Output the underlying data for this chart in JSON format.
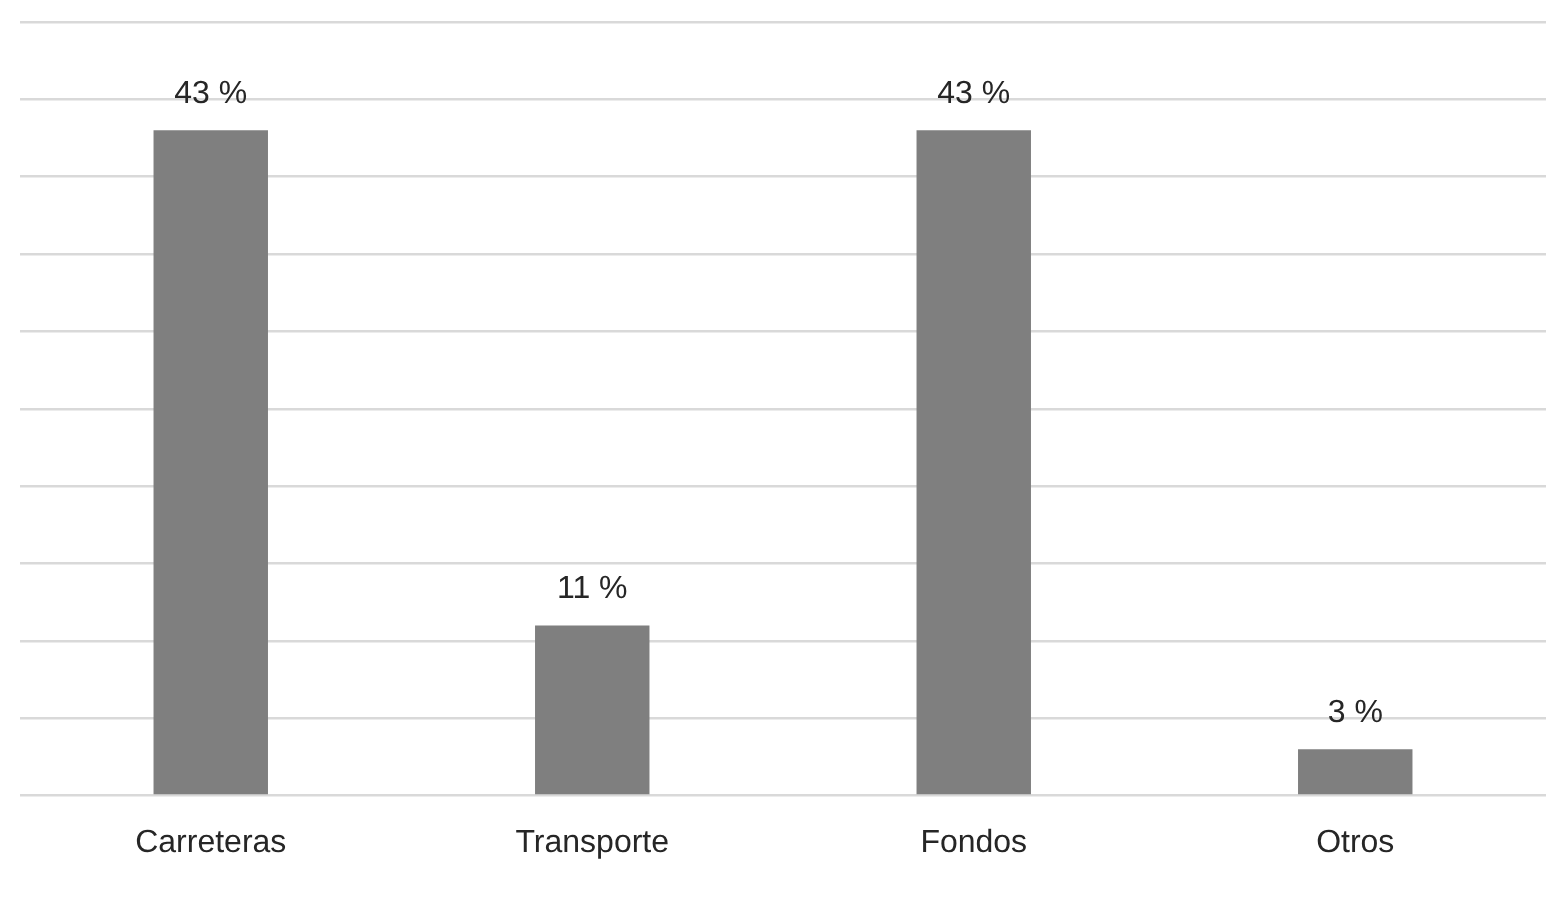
{
  "chart_data": {
    "type": "bar",
    "categories": [
      "Carreteras",
      "Transporte",
      "Fondos",
      "Otros"
    ],
    "values": [
      43,
      11,
      43,
      3
    ],
    "value_labels": [
      "43 %",
      "11 %",
      "43 %",
      "3 %"
    ],
    "color": "#7f7f7f",
    "ylim": [
      0,
      50
    ],
    "grid": "y",
    "tick_labels": "x"
  }
}
